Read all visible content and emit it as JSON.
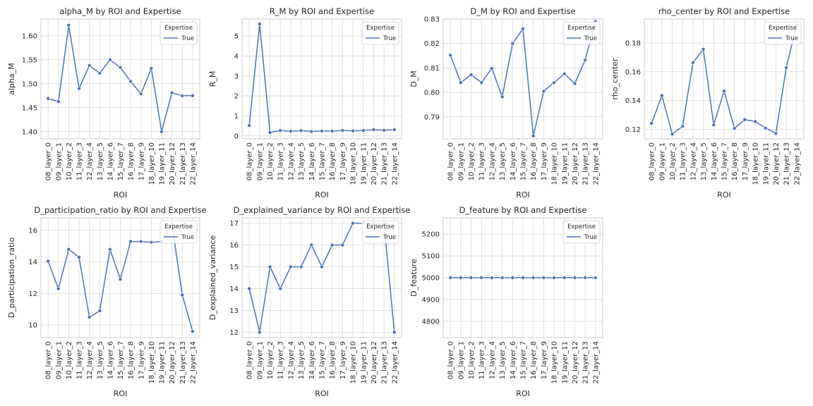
{
  "figure": {
    "legend_title": "Expertise",
    "legend_entry": "True",
    "line_color": "#4c72b0"
  },
  "chart_data": [
    {
      "type": "line",
      "title": "alpha_M by ROI and Expertise",
      "xlabel": "ROI",
      "ylabel": "alpha_M",
      "categories": [
        "08_layer_0",
        "09_layer_1",
        "10_layer_2",
        "11_layer_3",
        "12_layer_4",
        "13_layer_5",
        "14_layer_6",
        "15_layer_7",
        "16_layer_8",
        "17_layer_9",
        "18_layer_10",
        "19_layer_11",
        "20_layer_12",
        "21_layer_13",
        "22_layer_14"
      ],
      "series": [
        {
          "name": "True",
          "values": [
            1.469,
            1.463,
            1.622,
            1.49,
            1.538,
            1.522,
            1.55,
            1.534,
            1.505,
            1.479,
            1.532,
            1.4,
            1.481,
            1.475,
            1.475
          ]
        }
      ],
      "ylim": [
        1.385,
        1.635
      ],
      "yticks": [
        1.4,
        1.45,
        1.5,
        1.55,
        1.6
      ],
      "ytick_labels": [
        "1.40",
        "1.45",
        "1.50",
        "1.55",
        "1.60"
      ],
      "grid": true,
      "legend_position": "top-right"
    },
    {
      "type": "line",
      "title": "R_M by ROI and Expertise",
      "xlabel": "ROI",
      "ylabel": "R_M",
      "categories": [
        "08_layer_0",
        "09_layer_1",
        "10_layer_2",
        "11_layer_3",
        "12_layer_4",
        "13_layer_5",
        "14_layer_6",
        "15_layer_7",
        "16_layer_8",
        "17_layer_9",
        "18_layer_10",
        "19_layer_11",
        "20_layer_12",
        "21_layer_13",
        "22_layer_14"
      ],
      "series": [
        {
          "name": "True",
          "values": [
            0.52,
            5.6,
            0.17,
            0.27,
            0.23,
            0.26,
            0.22,
            0.24,
            0.24,
            0.27,
            0.25,
            0.27,
            0.31,
            0.28,
            0.31
          ]
        }
      ],
      "ylim": [
        -0.15,
        5.85
      ],
      "yticks": [
        0,
        1,
        2,
        3,
        4,
        5
      ],
      "ytick_labels": [
        "0",
        "1",
        "2",
        "3",
        "4",
        "5"
      ],
      "grid": true,
      "legend_position": "top-right"
    },
    {
      "type": "line",
      "title": "D_M by ROI and Expertise",
      "xlabel": "ROI",
      "ylabel": "D_M",
      "categories": [
        "08_layer_0",
        "09_layer_1",
        "10_layer_2",
        "11_layer_3",
        "12_layer_4",
        "13_layer_5",
        "14_layer_6",
        "15_layer_7",
        "16_layer_8",
        "17_layer_9",
        "18_layer_10",
        "19_layer_11",
        "20_layer_12",
        "21_layer_13",
        "22_layer_14"
      ],
      "series": [
        {
          "name": "True",
          "values": [
            0.8152,
            0.804,
            0.8072,
            0.804,
            0.8098,
            0.7982,
            0.82,
            0.826,
            0.7822,
            0.8005,
            0.804,
            0.8076,
            0.8036,
            0.8132,
            0.829
          ]
        }
      ],
      "ylim": [
        0.781,
        0.83
      ],
      "yticks": [
        0.79,
        0.8,
        0.81,
        0.82,
        0.83
      ],
      "ytick_labels": [
        "0.79",
        "0.80",
        "0.81",
        "0.82",
        "0.83"
      ],
      "grid": true,
      "legend_position": "top-right"
    },
    {
      "type": "line",
      "title": "rho_center by ROI and Expertise",
      "xlabel": "ROI",
      "ylabel": "rho_center",
      "categories": [
        "08_layer_0",
        "09_layer_1",
        "10_layer_2",
        "11_layer_3",
        "12_layer_4",
        "13_layer_5",
        "14_layer_6",
        "15_layer_7",
        "16_layer_8",
        "17_layer_9",
        "18_layer_10",
        "19_layer_11",
        "20_layer_12",
        "21_layer_13",
        "22_layer_14"
      ],
      "series": [
        {
          "name": "True",
          "values": [
            0.1242,
            0.1435,
            0.1168,
            0.1222,
            0.1663,
            0.1756,
            0.1232,
            0.1466,
            0.1208,
            0.1268,
            0.1255,
            0.121,
            0.1173,
            0.1628,
            0.1925
          ]
        }
      ],
      "ylim": [
        0.1135,
        0.1965
      ],
      "yticks": [
        0.12,
        0.14,
        0.16,
        0.18
      ],
      "ytick_labels": [
        "0.12",
        "0.14",
        "0.16",
        "0.18"
      ],
      "grid": true,
      "legend_position": "top-right"
    },
    {
      "type": "line",
      "title": "D_participation_ratio by ROI and Expertise",
      "xlabel": "ROI",
      "ylabel": "D_participation_ratio",
      "categories": [
        "08_layer_0",
        "09_layer_1",
        "10_layer_2",
        "11_layer_3",
        "12_layer_4",
        "13_layer_5",
        "14_layer_6",
        "15_layer_7",
        "16_layer_8",
        "17_layer_9",
        "18_layer_10",
        "19_layer_11",
        "20_layer_12",
        "21_layer_13",
        "22_layer_14"
      ],
      "series": [
        {
          "name": "True",
          "values": [
            14.05,
            12.3,
            14.8,
            14.3,
            10.5,
            10.9,
            14.8,
            12.9,
            15.3,
            15.3,
            15.25,
            15.3,
            16.4,
            11.9,
            9.6
          ]
        }
      ],
      "ylim": [
        9.2,
        16.8
      ],
      "yticks": [
        10,
        12,
        14,
        16
      ],
      "ytick_labels": [
        "10",
        "12",
        "14",
        "16"
      ],
      "grid": true,
      "legend_position": "top-right"
    },
    {
      "type": "line",
      "title": "D_explained_variance by ROI and Expertise",
      "xlabel": "ROI",
      "ylabel": "D_explained_variance",
      "categories": [
        "08_layer_0",
        "09_layer_1",
        "10_layer_2",
        "11_layer_3",
        "12_layer_4",
        "13_layer_5",
        "14_layer_6",
        "15_layer_7",
        "16_layer_8",
        "17_layer_9",
        "18_layer_10",
        "19_layer_11",
        "20_layer_12",
        "21_layer_13",
        "22_layer_14"
      ],
      "series": [
        {
          "name": "True",
          "values": [
            14,
            12,
            15,
            14,
            15,
            15,
            16,
            15,
            16,
            16,
            17,
            17,
            17,
            17,
            12
          ]
        }
      ],
      "ylim": [
        11.75,
        17.25
      ],
      "yticks": [
        12,
        13,
        14,
        15,
        16,
        17
      ],
      "ytick_labels": [
        "12",
        "13",
        "14",
        "15",
        "16",
        "17"
      ],
      "grid": true,
      "legend_position": "top-right"
    },
    {
      "type": "line",
      "title": "D_feature by ROI and Expertise",
      "xlabel": "ROI",
      "ylabel": "D_feature",
      "categories": [
        "08_layer_0",
        "09_layer_1",
        "10_layer_2",
        "11_layer_3",
        "12_layer_4",
        "13_layer_5",
        "14_layer_6",
        "15_layer_7",
        "16_layer_8",
        "17_layer_9",
        "18_layer_10",
        "19_layer_11",
        "20_layer_12",
        "21_layer_13",
        "22_layer_14"
      ],
      "series": [
        {
          "name": "True",
          "values": [
            5000,
            5000,
            5000,
            5000,
            5000,
            5000,
            5000,
            5000,
            5000,
            5000,
            5000,
            5000,
            5000,
            5000,
            5000
          ]
        }
      ],
      "ylim": [
        4725,
        5275
      ],
      "yticks": [
        4800,
        4900,
        5000,
        5100,
        5200
      ],
      "ytick_labels": [
        "4800",
        "4900",
        "5000",
        "5100",
        "5200"
      ],
      "grid": true,
      "legend_position": "top-right"
    }
  ]
}
